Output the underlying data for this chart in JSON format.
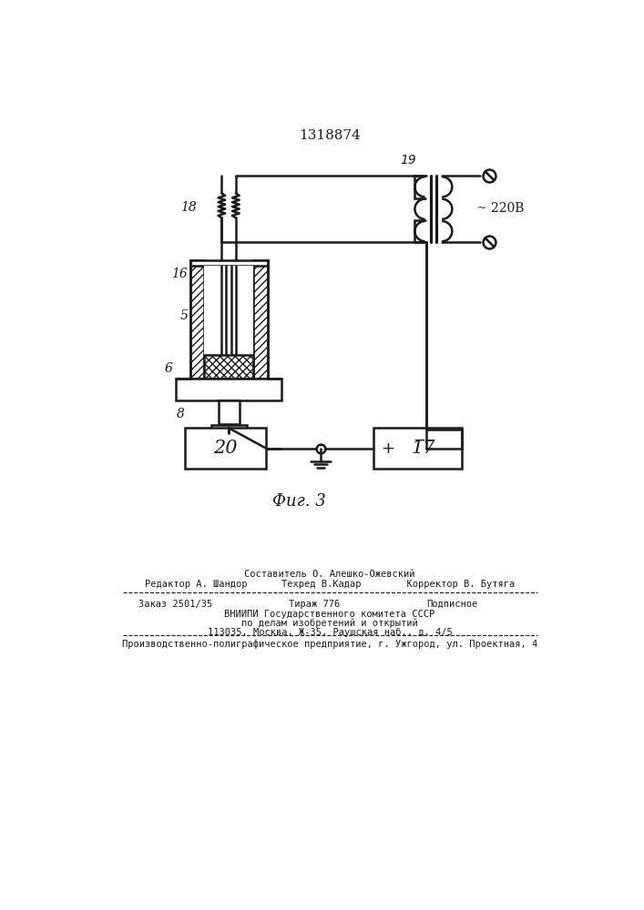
{
  "patent_number": "1318874",
  "fig_label": "Фиг. 3",
  "voltage_label": "~ 220В",
  "bg_color": "#ffffff",
  "line_color": "#1a1a1a"
}
